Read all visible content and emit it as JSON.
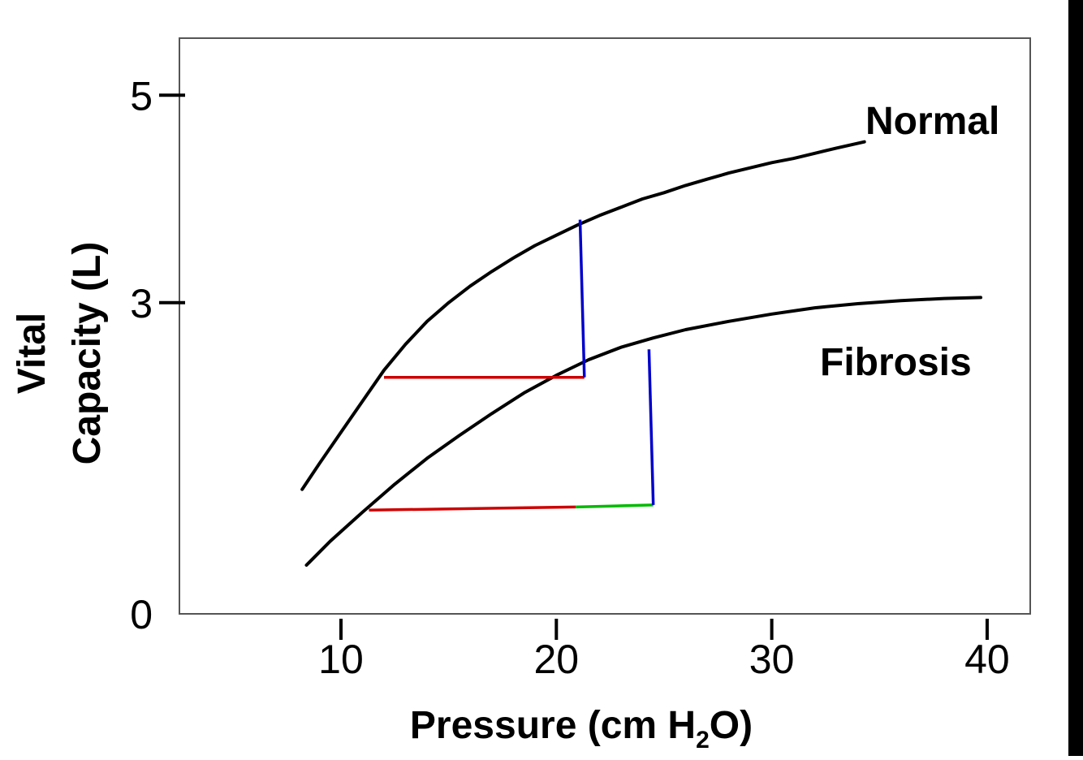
{
  "chart_data": {
    "type": "line",
    "xlabel": {
      "main": "Pressure (cm H",
      "sub": "2",
      "end": "O)"
    },
    "ylabel": {
      "line1": "Vital",
      "line2": "Capacity (L)"
    },
    "x_ticks": [
      10,
      20,
      30,
      40
    ],
    "y_ticks": [
      0,
      3,
      5
    ],
    "xlim": [
      2.5,
      42
    ],
    "ylim": [
      0,
      5.55
    ],
    "grid": false,
    "series": [
      {
        "name": "Normal",
        "color": "#000000",
        "points": [
          [
            8.2,
            1.2
          ],
          [
            9,
            1.45
          ],
          [
            10,
            1.75
          ],
          [
            11,
            2.05
          ],
          [
            12,
            2.35
          ],
          [
            13,
            2.6
          ],
          [
            14,
            2.82
          ],
          [
            15,
            3.0
          ],
          [
            16,
            3.16
          ],
          [
            17,
            3.3
          ],
          [
            18,
            3.43
          ],
          [
            19,
            3.55
          ],
          [
            20,
            3.65
          ],
          [
            21,
            3.75
          ],
          [
            22,
            3.84
          ],
          [
            23,
            3.92
          ],
          [
            24,
            4.0
          ],
          [
            25,
            4.06
          ],
          [
            26,
            4.13
          ],
          [
            27,
            4.19
          ],
          [
            28,
            4.25
          ],
          [
            29,
            4.3
          ],
          [
            30,
            4.35
          ],
          [
            31,
            4.39
          ],
          [
            32,
            4.44
          ],
          [
            33,
            4.49
          ],
          [
            34.3,
            4.55
          ]
        ]
      },
      {
        "name": "Fibrosis",
        "color": "#000000",
        "points": [
          [
            8.4,
            0.47
          ],
          [
            9.5,
            0.7
          ],
          [
            11,
            0.98
          ],
          [
            12.5,
            1.25
          ],
          [
            14,
            1.5
          ],
          [
            15.5,
            1.72
          ],
          [
            17,
            1.93
          ],
          [
            18.5,
            2.13
          ],
          [
            20,
            2.3
          ],
          [
            21.5,
            2.45
          ],
          [
            23,
            2.57
          ],
          [
            24.5,
            2.66
          ],
          [
            26,
            2.74
          ],
          [
            28,
            2.82
          ],
          [
            30,
            2.89
          ],
          [
            32,
            2.95
          ],
          [
            34,
            2.99
          ],
          [
            36,
            3.02
          ],
          [
            38,
            3.04
          ],
          [
            39.7,
            3.05
          ]
        ]
      }
    ],
    "annotations": [
      {
        "kind": "segment",
        "color": "#cc0000",
        "from": [
          12,
          2.28
        ],
        "to": [
          21.3,
          2.28
        ]
      },
      {
        "kind": "segment",
        "color": "#0000cc",
        "from": [
          21.1,
          3.8
        ],
        "to": [
          21.3,
          2.28
        ]
      },
      {
        "kind": "segment",
        "color": "#cc0000",
        "from": [
          11.3,
          1.0
        ],
        "to": [
          20.9,
          1.03
        ]
      },
      {
        "kind": "segment",
        "color": "#00bb00",
        "from": [
          20.9,
          1.03
        ],
        "to": [
          24.5,
          1.05
        ]
      },
      {
        "kind": "segment",
        "color": "#0000cc",
        "from": [
          24.3,
          2.55
        ],
        "to": [
          24.5,
          1.05
        ]
      }
    ]
  }
}
